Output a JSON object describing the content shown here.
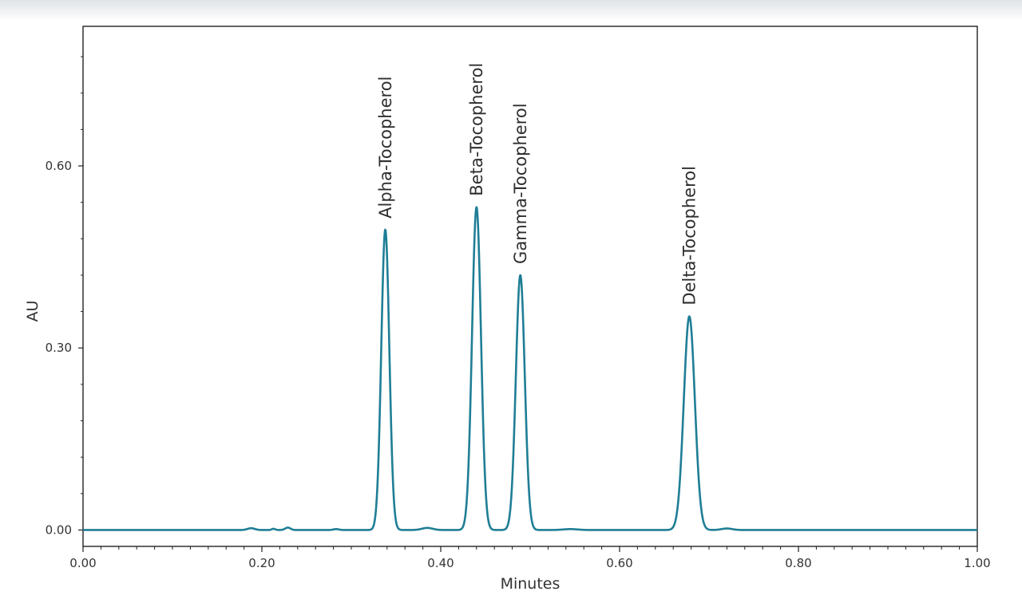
{
  "chart_data": {
    "type": "line",
    "xlabel": "Minutes",
    "ylabel": "AU",
    "xlim": [
      0.0,
      1.0
    ],
    "ylim": [
      -0.027,
      0.83
    ],
    "xticks": [
      "0.00",
      "0.20",
      "0.40",
      "0.60",
      "0.80",
      "1.00"
    ],
    "yticks": [
      "0.00",
      "0.30",
      "0.60"
    ],
    "line_color": "#1f7e96",
    "grid": false,
    "series": [
      {
        "name": "",
        "peaks": [
          {
            "label": "Alpha-Tocopherol",
            "x": 0.338,
            "y": 0.495,
            "width": 0.0045
          },
          {
            "label": "Beta-Tocopherol",
            "x": 0.44,
            "y": 0.532,
            "width": 0.005
          },
          {
            "label": "Gamma-Tocopherol",
            "x": 0.489,
            "y": 0.42,
            "width": 0.005
          },
          {
            "label": "Delta-Tocopherol",
            "x": 0.678,
            "y": 0.352,
            "width": 0.0062
          }
        ],
        "minor_bumps": [
          {
            "x": 0.188,
            "y": 0.003,
            "width": 0.004
          },
          {
            "x": 0.213,
            "y": 0.002,
            "width": 0.002
          },
          {
            "x": 0.229,
            "y": 0.004,
            "width": 0.003
          },
          {
            "x": 0.283,
            "y": 0.0015,
            "width": 0.003
          },
          {
            "x": 0.385,
            "y": 0.0035,
            "width": 0.006
          },
          {
            "x": 0.545,
            "y": 0.0015,
            "width": 0.008
          },
          {
            "x": 0.72,
            "y": 0.0025,
            "width": 0.006
          }
        ]
      }
    ]
  }
}
